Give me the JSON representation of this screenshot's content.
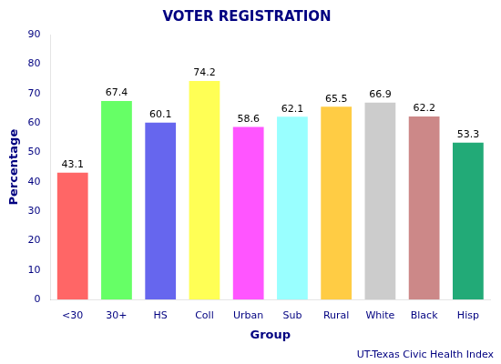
{
  "chart_data": {
    "type": "bar",
    "title": "VOTER REGISTRATION",
    "xlabel": "Group",
    "ylabel": "Percentage",
    "categories": [
      "<30",
      "30+",
      "HS",
      "Coll",
      "Urban",
      "Sub",
      "Rural",
      "White",
      "Black",
      "Hisp"
    ],
    "values": [
      43.1,
      67.4,
      60.1,
      74.2,
      58.6,
      62.1,
      65.5,
      66.9,
      62.2,
      53.3
    ],
    "colors": [
      "#FF6666",
      "#66FF66",
      "#6666EE",
      "#FFFF55",
      "#FF55FF",
      "#99FFFF",
      "#FFCC44",
      "#CCCCCC",
      "#CC8888",
      "#22AA77"
    ],
    "ylim": [
      0,
      90
    ],
    "yticks": [
      0,
      10,
      20,
      30,
      40,
      50,
      60,
      70,
      80,
      90
    ],
    "annotation": "UT-Texas Civic Health Index",
    "data_labels": true,
    "grid": false
  }
}
